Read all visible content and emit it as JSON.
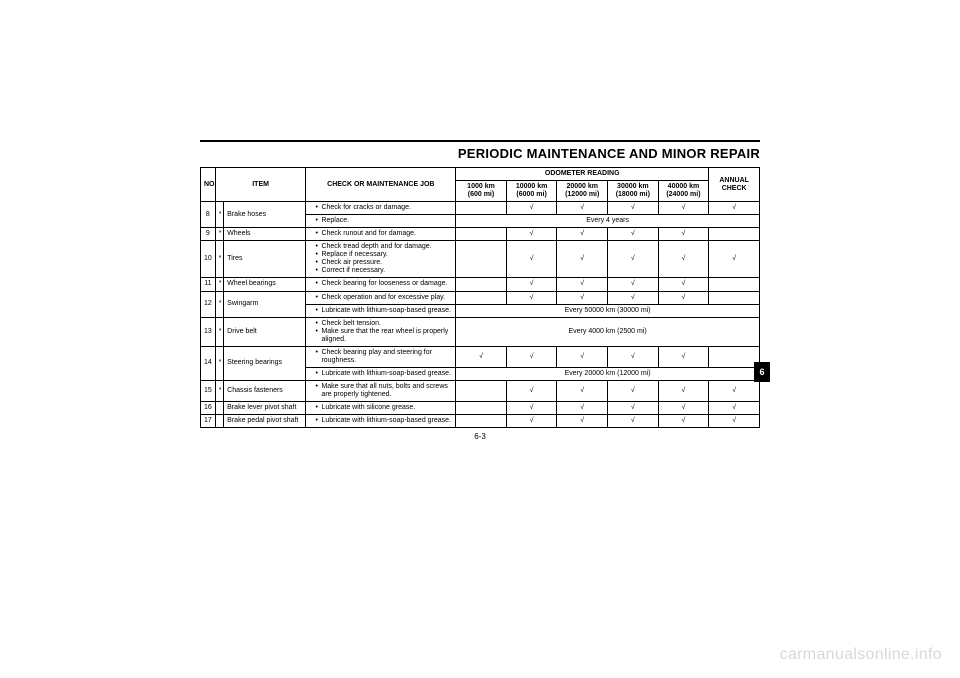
{
  "tick": "√",
  "title": "PERIODIC MAINTENANCE AND MINOR REPAIR",
  "page_number": "6-3",
  "side_tab": "6",
  "watermark": "carmanualsonline.info",
  "headers": {
    "no": "NO.",
    "item": "ITEM",
    "job": "CHECK OR MAINTENANCE JOB",
    "odometer": "ODOMETER READING",
    "annual": "ANNUAL CHECK",
    "cols": [
      {
        "top": "1000 km",
        "bot": "(600 mi)"
      },
      {
        "top": "10000 km",
        "bot": "(6000 mi)"
      },
      {
        "top": "20000 km",
        "bot": "(12000 mi)"
      },
      {
        "top": "30000 km",
        "bot": "(18000 mi)"
      },
      {
        "top": "40000 km",
        "bot": "(24000 mi)"
      }
    ]
  },
  "rows": [
    {
      "no": "8",
      "star": "*",
      "item": "Brake hoses",
      "subrows": [
        {
          "jobs": [
            "Check for cracks or damage."
          ],
          "checks": [
            "",
            "√",
            "√",
            "√",
            "√",
            "√"
          ]
        },
        {
          "jobs": [
            "Replace."
          ],
          "span_text": "Every 4 years",
          "span_cols": 6
        }
      ]
    },
    {
      "no": "9",
      "star": "*",
      "item": "Wheels",
      "subrows": [
        {
          "jobs": [
            "Check runout and for damage."
          ],
          "checks": [
            "",
            "√",
            "√",
            "√",
            "√",
            ""
          ]
        }
      ]
    },
    {
      "no": "10",
      "star": "*",
      "item": "Tires",
      "subrows": [
        {
          "jobs": [
            "Check tread depth and for damage.",
            "Replace if necessary.",
            "Check air pressure.",
            "Correct if necessary."
          ],
          "checks": [
            "",
            "√",
            "√",
            "√",
            "√",
            "√"
          ]
        }
      ]
    },
    {
      "no": "11",
      "star": "*",
      "item": "Wheel bearings",
      "subrows": [
        {
          "jobs": [
            "Check bearing for looseness or damage."
          ],
          "checks": [
            "",
            "√",
            "√",
            "√",
            "√",
            ""
          ]
        }
      ]
    },
    {
      "no": "12",
      "star": "*",
      "item": "Swingarm",
      "subrows": [
        {
          "jobs": [
            "Check operation and for excessive play."
          ],
          "checks": [
            "",
            "√",
            "√",
            "√",
            "√",
            ""
          ]
        },
        {
          "jobs": [
            "Lubricate with lithium-soap-based grease."
          ],
          "span_text": "Every 50000 km (30000 mi)",
          "span_cols": 6
        }
      ]
    },
    {
      "no": "13",
      "star": "*",
      "item": "Drive belt",
      "subrows": [
        {
          "jobs": [
            "Check belt tension.",
            "Make sure that the rear wheel is properly aligned."
          ],
          "span_text": "Every 4000 km (2500 mi)",
          "span_cols": 6
        }
      ]
    },
    {
      "no": "14",
      "star": "*",
      "item": "Steering bearings",
      "subrows": [
        {
          "jobs": [
            "Check bearing play and steering for roughness."
          ],
          "checks": [
            "√",
            "√",
            "√",
            "√",
            "√",
            ""
          ]
        },
        {
          "jobs": [
            "Lubricate with lithium-soap-based grease."
          ],
          "span_text": "Every 20000 km (12000 mi)",
          "span_cols": 6
        }
      ]
    },
    {
      "no": "15",
      "star": "*",
      "item": "Chassis fasteners",
      "subrows": [
        {
          "jobs": [
            "Make sure that all nuts, bolts and screws are properly tightened."
          ],
          "checks": [
            "",
            "√",
            "√",
            "√",
            "√",
            "√"
          ]
        }
      ]
    },
    {
      "no": "16",
      "star": "",
      "item": "Brake lever pivot shaft",
      "subrows": [
        {
          "jobs": [
            "Lubricate with silicone grease."
          ],
          "checks": [
            "",
            "√",
            "√",
            "√",
            "√",
            "√"
          ]
        }
      ]
    },
    {
      "no": "17",
      "star": "",
      "item": "Brake pedal pivot shaft",
      "subrows": [
        {
          "jobs": [
            "Lubricate with lithium-soap-based grease."
          ],
          "checks": [
            "",
            "√",
            "√",
            "√",
            "√",
            "√"
          ]
        }
      ]
    }
  ]
}
